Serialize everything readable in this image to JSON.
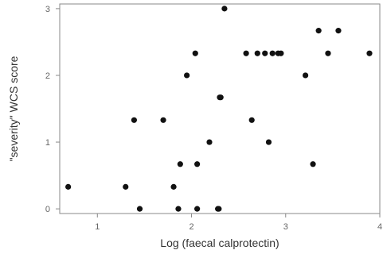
{
  "chart_data": {
    "type": "scatter",
    "title": "",
    "xlabel": "Log (faecal calprotectin)",
    "ylabel": "\"severity\" WCS score",
    "xlim": [
      0.6,
      4.0
    ],
    "ylim": [
      -0.07,
      3.07
    ],
    "xticks": [
      1,
      2,
      3,
      4
    ],
    "xtick_labels": [
      "1",
      "2",
      "3",
      "4"
    ],
    "yticks": [
      0,
      1,
      2,
      3
    ],
    "ytick_labels": [
      "0",
      "1",
      "2",
      "3"
    ],
    "grid": false,
    "legend": "none",
    "point_color": "#111111",
    "axis_color": "#888888",
    "series": [
      {
        "points": [
          {
            "x": 0.69,
            "y": 0.33
          },
          {
            "x": 1.3,
            "y": 0.33
          },
          {
            "x": 1.39,
            "y": 1.33
          },
          {
            "x": 1.45,
            "y": 0.0
          },
          {
            "x": 1.7,
            "y": 1.33
          },
          {
            "x": 1.81,
            "y": 0.33
          },
          {
            "x": 1.86,
            "y": 0.0
          },
          {
            "x": 1.88,
            "y": 0.67
          },
          {
            "x": 1.95,
            "y": 2.0
          },
          {
            "x": 2.04,
            "y": 2.33
          },
          {
            "x": 2.06,
            "y": 0.0
          },
          {
            "x": 2.06,
            "y": 0.67
          },
          {
            "x": 2.19,
            "y": 1.0
          },
          {
            "x": 2.28,
            "y": 0.0
          },
          {
            "x": 2.29,
            "y": 0.0
          },
          {
            "x": 2.3,
            "y": 1.67
          },
          {
            "x": 2.31,
            "y": 1.67
          },
          {
            "x": 2.35,
            "y": 3.0
          },
          {
            "x": 2.58,
            "y": 2.33
          },
          {
            "x": 2.64,
            "y": 1.33
          },
          {
            "x": 2.7,
            "y": 2.33
          },
          {
            "x": 2.78,
            "y": 2.33
          },
          {
            "x": 2.82,
            "y": 1.0
          },
          {
            "x": 2.86,
            "y": 2.33
          },
          {
            "x": 2.92,
            "y": 2.33
          },
          {
            "x": 2.95,
            "y": 2.33
          },
          {
            "x": 3.21,
            "y": 2.0
          },
          {
            "x": 3.29,
            "y": 0.67
          },
          {
            "x": 3.35,
            "y": 2.67
          },
          {
            "x": 3.45,
            "y": 2.33
          },
          {
            "x": 3.56,
            "y": 2.67
          },
          {
            "x": 3.89,
            "y": 2.33
          }
        ]
      }
    ]
  }
}
